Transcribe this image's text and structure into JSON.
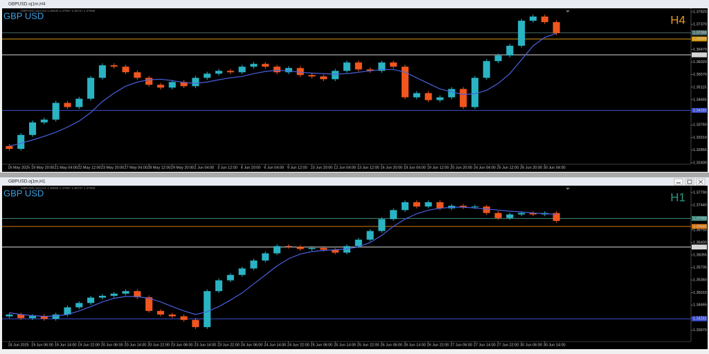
{
  "chart_data": [
    {
      "type": "candlestick",
      "window_title": "GBPUSD.oj1m,H4",
      "title": "GBP USD",
      "timeframe": "H4",
      "ohlc_header": "GBPUSD.oj1m,H4 1.36930 1.37087 1.36737 1.37068",
      "title_color": "#3a9fe0",
      "timeframe_color": "#e89a1e",
      "up_color": "#2ab3c3",
      "down_color": "#f0561e",
      "categories": [
        "16 May 2025",
        null,
        "19 May 20:00",
        null,
        "21 May 04:00",
        null,
        "22 May 12:00",
        null,
        "23 May 20:00",
        null,
        "27 May 04:00",
        null,
        "28 May 12:00",
        null,
        "29 May 20:00",
        null,
        "2 Jun 04:00",
        null,
        "3 Jun 12:00",
        null,
        "4 Jun 20:00",
        null,
        "6 Jun 04:00",
        null,
        "9 Jun 12:00",
        null,
        "10 Jun 20:00",
        null,
        "12 Jun 04:00",
        null,
        "13 Jun 12:00",
        null,
        "16 Jun 20:00",
        null,
        "18 Jun 04:00",
        null,
        "19 Jun 12:00",
        null,
        "20 Jun 20:00",
        null,
        "24 Jun 04:00",
        null,
        "25 Jun 12:00",
        null,
        "26 Jun 20:00",
        null,
        "30 Jun 04:00",
        null
      ],
      "open": [
        1.33,
        1.329,
        1.334,
        1.3385,
        1.3395,
        1.3455,
        1.344,
        1.347,
        1.3545,
        1.359,
        1.3585,
        1.3565,
        1.3545,
        1.352,
        1.351,
        1.353,
        1.3515,
        1.3545,
        1.356,
        1.357,
        1.3565,
        1.3585,
        1.3595,
        1.3585,
        1.3565,
        1.358,
        1.3555,
        1.355,
        1.354,
        1.357,
        1.36,
        1.3575,
        1.357,
        1.36,
        1.3585,
        1.3475,
        1.349,
        1.3465,
        1.3475,
        1.3505,
        1.344,
        1.3545,
        1.3605,
        1.3625,
        1.366,
        1.375,
        1.3765,
        1.3745
      ],
      "high": [
        1.3307,
        1.3347,
        1.3392,
        1.3402,
        1.3462,
        1.3462,
        1.3477,
        1.3552,
        1.3597,
        1.3597,
        1.3592,
        1.3572,
        1.3552,
        1.3527,
        1.3537,
        1.3537,
        1.3552,
        1.3567,
        1.3577,
        1.3577,
        1.3592,
        1.3602,
        1.3602,
        1.3592,
        1.3587,
        1.3587,
        1.3562,
        1.3557,
        1.3577,
        1.3607,
        1.3607,
        1.3582,
        1.3607,
        1.3607,
        1.3592,
        1.3497,
        1.3497,
        1.3482,
        1.3512,
        1.3512,
        1.3552,
        1.3612,
        1.3632,
        1.3667,
        1.3757,
        1.3772,
        1.3772,
        1.3752
      ],
      "low": [
        1.3283,
        1.3283,
        1.3333,
        1.3378,
        1.3388,
        1.3433,
        1.3433,
        1.3463,
        1.3538,
        1.3578,
        1.3558,
        1.3538,
        1.3513,
        1.3503,
        1.3503,
        1.3508,
        1.3508,
        1.3538,
        1.3553,
        1.3558,
        1.3558,
        1.3578,
        1.3578,
        1.3558,
        1.3558,
        1.3548,
        1.3543,
        1.3533,
        1.3533,
        1.3563,
        1.3568,
        1.3563,
        1.3563,
        1.3578,
        1.3468,
        1.3468,
        1.3458,
        1.3458,
        1.3468,
        1.3433,
        1.3433,
        1.3538,
        1.3598,
        1.3618,
        1.3653,
        1.3743,
        1.3738,
        1.3698
      ],
      "close": [
        1.329,
        1.334,
        1.3385,
        1.3395,
        1.3455,
        1.344,
        1.347,
        1.3545,
        1.359,
        1.3585,
        1.3565,
        1.3545,
        1.352,
        1.351,
        1.353,
        1.3515,
        1.3545,
        1.356,
        1.357,
        1.3565,
        1.3585,
        1.3595,
        1.3585,
        1.3565,
        1.358,
        1.3555,
        1.355,
        1.354,
        1.357,
        1.36,
        1.3575,
        1.357,
        1.36,
        1.3585,
        1.3475,
        1.349,
        1.3465,
        1.3475,
        1.3505,
        1.344,
        1.3545,
        1.3605,
        1.3625,
        1.366,
        1.375,
        1.3765,
        1.3745,
        1.3705
      ],
      "moving_average": {
        "color": "#4a62e0",
        "values": [
          1.33,
          1.331,
          1.3322,
          1.3335,
          1.335,
          1.3368,
          1.339,
          1.342,
          1.346,
          1.349,
          1.3515,
          1.353,
          1.3538,
          1.354,
          1.3535,
          1.3528,
          1.3525,
          1.353,
          1.3538,
          1.3545,
          1.355,
          1.356,
          1.3568,
          1.3572,
          1.357,
          1.3565,
          1.3562,
          1.356,
          1.3558,
          1.356,
          1.3565,
          1.357,
          1.3575,
          1.3575,
          1.3565,
          1.3545,
          1.3525,
          1.3505,
          1.3495,
          1.3485,
          1.3488,
          1.35,
          1.3525,
          1.356,
          1.361,
          1.366,
          1.369,
          1.3705
        ]
      },
      "levels": [
        {
          "value": 1.37068,
          "color": "#4f6f6f"
        },
        {
          "value": 1.36846,
          "color": "#d79a12"
        },
        {
          "value": 1.36275,
          "color": "#d8d8d8"
        },
        {
          "value": 1.34281,
          "color": "#3c4fd0"
        }
      ],
      "ylim": [
        1.3235,
        1.3792
      ],
      "yticks": [
        {
          "value": 1.3782,
          "label": "1.37820"
        },
        {
          "value": 1.3737,
          "label": "1.37370"
        },
        {
          "value": 1.3647,
          "label": "1.36470"
        },
        {
          "value": 1.3602,
          "label": "1.36020"
        },
        {
          "value": 1.3557,
          "label": "1.35570"
        },
        1.35115,
        1.34665,
        {
          "value": 1.3376,
          "label": "1.33760"
        },
        {
          "value": 1.3331,
          "label": "1.33310"
        },
        1.32855,
        {
          "value": 1.324,
          "label": "1.32400"
        }
      ]
    },
    {
      "type": "candlestick",
      "window_title": "GBPUSD.oj1m,H1",
      "title": "GBP USD",
      "timeframe": "H1",
      "ohlc_header": "GBPUSD.oj1m,H1 1.36856 1.37087 1.36737 1.37068",
      "title_color": "#3a9fe0",
      "timeframe_color": "#2a9a86",
      "up_color": "#2ab3c3",
      "down_color": "#f0561e",
      "categories": [
        "18 Jun 2025",
        null,
        "19 Jun 06:00",
        null,
        "19 Jun 14:00",
        null,
        "19 Jun 22:00",
        null,
        "20 Jun 06:00",
        null,
        "20 Jun 14:00",
        null,
        "20 Jun 22:00",
        null,
        "23 Jun 06:00",
        null,
        "23 Jun 14:00",
        null,
        "23 Jun 22:00",
        null,
        "24 Jun 06:00",
        null,
        "24 Jun 14:00",
        null,
        "24 Jun 22:00",
        null,
        "25 Jun 06:00",
        null,
        "25 Jun 14:00",
        null,
        "25 Jun 22:00",
        null,
        "26 Jun 06:00",
        null,
        "26 Jun 14:00",
        null,
        "26 Jun 22:00",
        null,
        "27 Jun 06:00",
        null,
        "27 Jun 14:00",
        null,
        "27 Jun 22:00",
        null,
        "30 Jun 06:00",
        null,
        "30 Jun 14:00",
        null
      ],
      "open": [
        1.3435,
        1.344,
        1.343,
        1.3436,
        1.3428,
        1.344,
        1.346,
        1.3472,
        1.3487,
        1.3492,
        1.3498,
        1.3505,
        1.3488,
        1.345,
        1.344,
        1.3435,
        1.3425,
        1.3405,
        1.3505,
        1.3535,
        1.355,
        1.3568,
        1.359,
        1.361,
        1.363,
        1.3628,
        1.3622,
        1.3625,
        1.362,
        1.3612,
        1.363,
        1.3648,
        1.3672,
        1.3705,
        1.373,
        1.3752,
        1.374,
        1.3752,
        1.3735,
        1.3742,
        1.3738,
        1.374,
        1.3722,
        1.3708,
        1.3718,
        1.3722,
        1.3718,
        1.3722
      ],
      "high": [
        1.3445,
        1.3445,
        1.3441,
        1.3441,
        1.3445,
        1.3465,
        1.3477,
        1.3492,
        1.3497,
        1.3503,
        1.351,
        1.351,
        1.3493,
        1.3455,
        1.3445,
        1.344,
        1.343,
        1.351,
        1.354,
        1.3555,
        1.3573,
        1.3595,
        1.3615,
        1.3635,
        1.3635,
        1.3633,
        1.363,
        1.363,
        1.3625,
        1.3635,
        1.3653,
        1.3677,
        1.371,
        1.3735,
        1.3757,
        1.3757,
        1.3757,
        1.3757,
        1.3747,
        1.3747,
        1.3745,
        1.3745,
        1.3727,
        1.3723,
        1.3727,
        1.3727,
        1.3727,
        1.3727
      ],
      "low": [
        1.343,
        1.3425,
        1.3425,
        1.3423,
        1.3423,
        1.3435,
        1.3455,
        1.3467,
        1.3482,
        1.3487,
        1.3493,
        1.3483,
        1.3445,
        1.3435,
        1.343,
        1.342,
        1.34,
        1.34,
        1.35,
        1.353,
        1.3545,
        1.3563,
        1.3585,
        1.3605,
        1.3623,
        1.3617,
        1.3617,
        1.3615,
        1.3607,
        1.3607,
        1.3625,
        1.3643,
        1.3667,
        1.37,
        1.3725,
        1.3735,
        1.3735,
        1.373,
        1.373,
        1.3733,
        1.3733,
        1.3717,
        1.3703,
        1.3703,
        1.3713,
        1.3713,
        1.3713,
        1.3695
      ],
      "close": [
        1.344,
        1.343,
        1.3436,
        1.3428,
        1.344,
        1.346,
        1.3472,
        1.3487,
        1.3492,
        1.3498,
        1.3505,
        1.3488,
        1.345,
        1.344,
        1.3435,
        1.3425,
        1.3405,
        1.3505,
        1.3535,
        1.355,
        1.3568,
        1.359,
        1.361,
        1.363,
        1.3628,
        1.3622,
        1.3625,
        1.362,
        1.3612,
        1.363,
        1.3648,
        1.3672,
        1.3705,
        1.373,
        1.3752,
        1.374,
        1.3752,
        1.3735,
        1.3742,
        1.3738,
        1.374,
        1.3722,
        1.3708,
        1.3718,
        1.3722,
        1.3718,
        1.3722,
        1.37
      ],
      "moving_average": {
        "color": "#4a62e0",
        "values": [
          1.3445,
          1.344,
          1.3437,
          1.3435,
          1.3436,
          1.344,
          1.345,
          1.3462,
          1.3475,
          1.3485,
          1.349,
          1.349,
          1.3485,
          1.3475,
          1.3462,
          1.345,
          1.344,
          1.3448,
          1.3462,
          1.348,
          1.35,
          1.3525,
          1.355,
          1.3575,
          1.3595,
          1.3608,
          1.3615,
          1.3618,
          1.362,
          1.3622,
          1.3628,
          1.364,
          1.366,
          1.3685,
          1.3705,
          1.372,
          1.373,
          1.3735,
          1.3738,
          1.3738,
          1.3736,
          1.3733,
          1.373,
          1.3727,
          1.3725,
          1.3722,
          1.372,
          1.3718
        ]
      },
      "levels": [
        {
          "value": 1.37068,
          "color": "#3f8a80"
        },
        {
          "value": 1.36846,
          "color": "#d97a12"
        },
        {
          "value": 1.36275,
          "color": "#d8d8d8"
        },
        {
          "value": 1.34281,
          "color": "#3c4fd0"
        }
      ],
      "ylim": [
        1.3365,
        1.3796
      ],
      "yticks": [
        {
          "value": 1.3779,
          "label": "1.37790"
        },
        {
          "value": 1.3744,
          "label": "1.37440"
        },
        {
          "value": 1.3675,
          "label": "1.36750"
        },
        {
          "value": 1.364,
          "label": "1.36400"
        },
        1.36055,
        1.35705,
        {
          "value": 1.3536,
          "label": "1.35360"
        },
        {
          "value": 1.3501,
          "label": "1.35010"
        },
        1.34665,
        1.34315,
        {
          "value": 1.3397,
          "label": "1.33970"
        }
      ]
    }
  ]
}
